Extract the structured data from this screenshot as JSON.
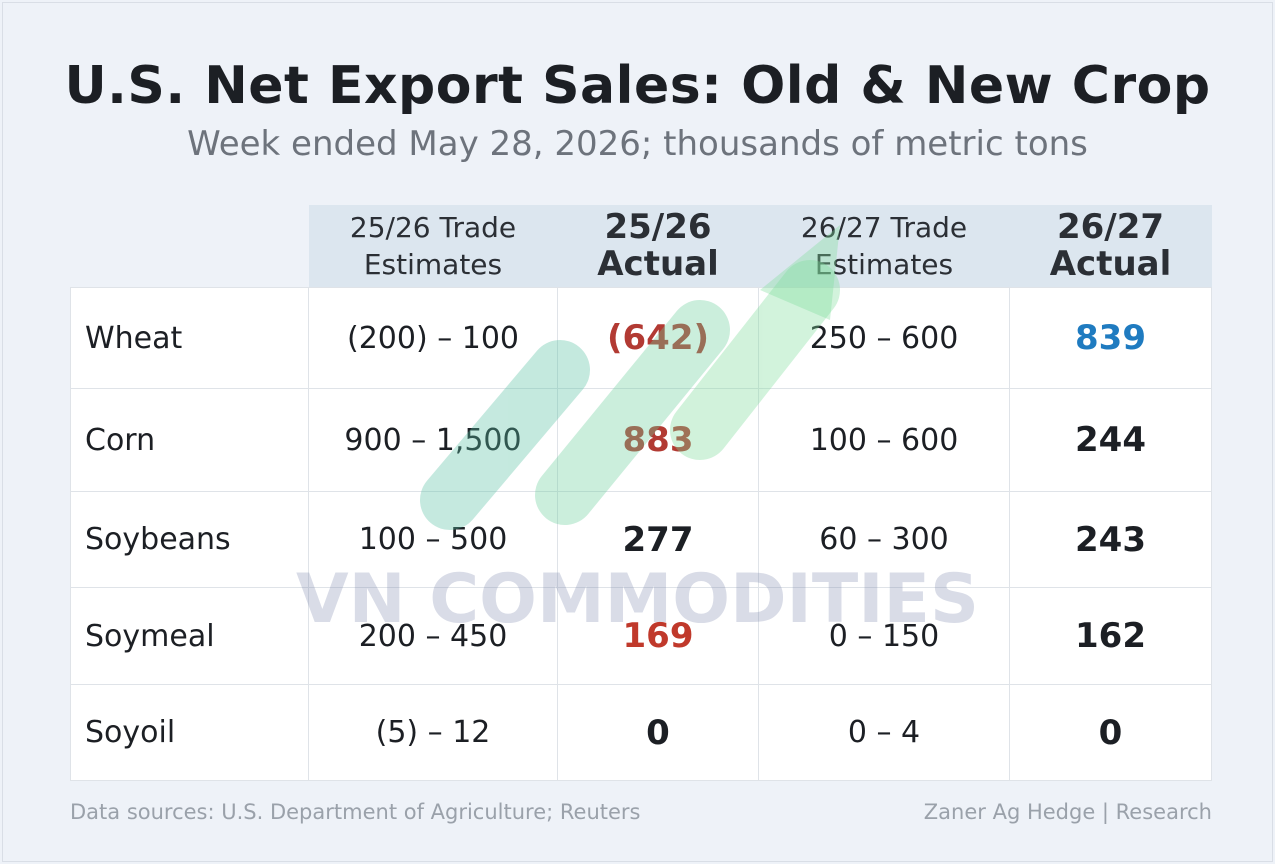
{
  "header": {
    "title": "U.S. Net Export Sales: Old & New Crop",
    "subtitle": "Week ended May 28, 2026; thousands of metric tons"
  },
  "table": {
    "columns": [
      [
        "25/26 Trade",
        "Estimates"
      ],
      [
        "25/26",
        "Actual"
      ],
      [
        "26/27 Trade",
        "Estimates"
      ],
      [
        "26/27",
        "Actual"
      ]
    ],
    "rows": [
      [
        "Wheat",
        "(200) – 100",
        "(642)",
        "250 – 600",
        "839"
      ],
      [
        "Corn",
        "900 – 1,500",
        "883",
        "100 – 600",
        "244"
      ],
      [
        "Soybeans",
        "100 – 500",
        "277",
        "60 – 300",
        "243"
      ],
      [
        "Soymeal",
        "200 – 450",
        "169",
        "0 – 150",
        "162"
      ],
      [
        "Soyoil",
        "(5) – 12",
        "0",
        "0 – 4",
        "0"
      ]
    ]
  },
  "watermark": "VN COMMODITIES",
  "footer": {
    "source": "Data sources: U.S. Department of Agriculture; Reuters",
    "credit": "Zaner Ag Hedge | Research"
  }
}
